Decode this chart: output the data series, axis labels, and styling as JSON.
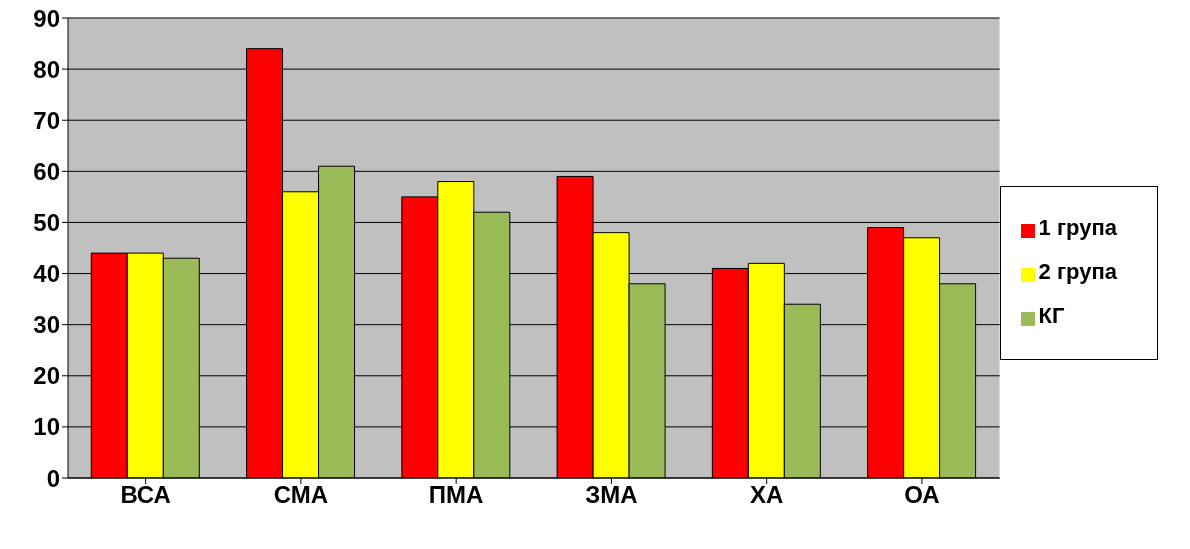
{
  "chart_data": {
    "type": "bar",
    "categories": [
      "ВСА",
      "СМА",
      "ПМА",
      "ЗМА",
      "ХА",
      "ОА"
    ],
    "series": [
      {
        "name": "1 група",
        "color": "#ff0000",
        "values": [
          44,
          84,
          55,
          59,
          41,
          49
        ]
      },
      {
        "name": "2 група",
        "color": "#ffff00",
        "values": [
          44,
          56,
          58,
          48,
          42,
          47
        ]
      },
      {
        "name": "КГ",
        "color": "#9bbb59",
        "values": [
          43,
          61,
          52,
          38,
          34,
          38
        ]
      }
    ],
    "ylim": [
      0,
      90
    ],
    "yticks": [
      0,
      10,
      20,
      30,
      40,
      50,
      60,
      70,
      80,
      90
    ],
    "grid": "y",
    "legend": "right"
  }
}
